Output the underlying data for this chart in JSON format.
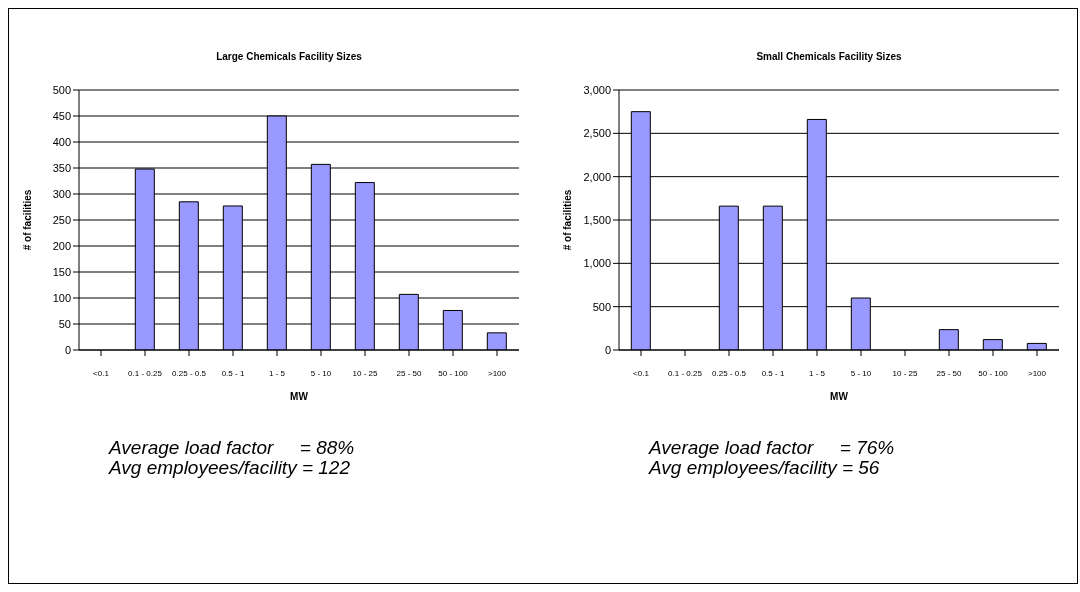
{
  "chart_data": [
    {
      "type": "bar",
      "title": "Large Chemicals Facility Sizes",
      "xlabel": "MW",
      "ylabel": "# of facilities",
      "categories": [
        "<0.1",
        "0.1 - 0.25",
        "0.25 - 0.5",
        "0.5 - 1",
        "1 - 5",
        "5 - 10",
        "10 - 25",
        "25 - 50",
        "50 - 100",
        ">100"
      ],
      "values": [
        0,
        348,
        285,
        277,
        450,
        357,
        322,
        107,
        76,
        33
      ],
      "color": "#9999ff",
      "ylim": [
        0,
        500
      ],
      "yticks": [
        0,
        50,
        100,
        150,
        200,
        250,
        300,
        350,
        400,
        450,
        500
      ],
      "grid": "y",
      "annotations": [
        "Average load factor     = 88%",
        "Avg employees/facility = 122"
      ]
    },
    {
      "type": "bar",
      "title": "Small Chemicals Facility Sizes",
      "xlabel": "MW",
      "ylabel": "# of facilities",
      "categories": [
        "<0.1",
        "0.1 - 0.25",
        "0.25 - 0.5",
        "0.5 - 1",
        "1 - 5",
        "5 - 10",
        "10 - 25",
        "25 - 50",
        "50 - 100",
        ">100"
      ],
      "values": [
        2750,
        0,
        1660,
        1660,
        2660,
        600,
        0,
        235,
        120,
        76
      ],
      "color": "#9999ff",
      "ylim": [
        0,
        3000
      ],
      "yticks": [
        0,
        500,
        {
          "value": 1000,
          "label": "1,000"
        },
        {
          "value": 1500,
          "label": "1,500"
        },
        {
          "value": 2000,
          "label": "2,000"
        },
        {
          "value": 2500,
          "label": "2,500"
        },
        {
          "value": 3000,
          "label": "3,000"
        }
      ],
      "grid": "y",
      "annotations": [
        "Average load factor     = 76%",
        "Avg employees/facility = 56"
      ]
    }
  ]
}
